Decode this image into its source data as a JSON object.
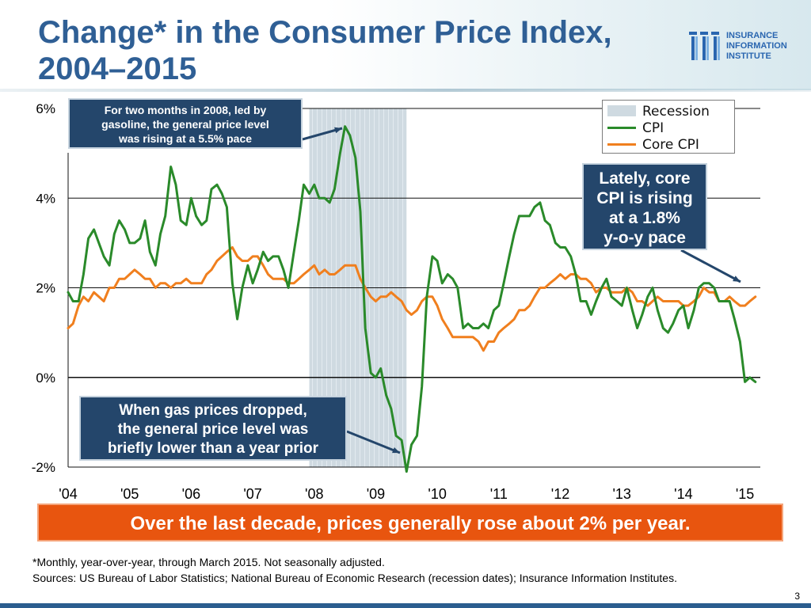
{
  "title": {
    "line1": "Change* in the Consumer Price Index,",
    "line2": "2004–2015"
  },
  "logo": {
    "line1": "INSURANCE",
    "line2": "INFORMATION",
    "line3": "INSTITUTE",
    "color": "#2a66b0"
  },
  "callouts": {
    "spike_2008": {
      "line1": "For two months in 2008, led by",
      "line2": "gasoline, the general price level",
      "line3": "was rising at a 5.5% pace"
    },
    "gas_drop": {
      "line1": "When gas prices dropped,",
      "line2": "the general price level was",
      "line3": "briefly lower than a year prior"
    },
    "core_cpi": {
      "line1": "Lately, core",
      "line2": "CPI is rising",
      "line3": "at a 1.8%",
      "line4": "y-o-y pace"
    }
  },
  "legend": {
    "recession": "Recession",
    "cpi": "CPI",
    "core_cpi": "Core CPI"
  },
  "banner": "Over the last decade, prices generally rose about 2% per year.",
  "footnote": {
    "line1": "*Monthly, year-over-year, through March 2015. Not seasonally adjusted.",
    "line2": "Sources: US Bureau of Labor Statistics; National Bureau of Economic Research (recession dates); Insurance Information Institutes."
  },
  "page_number": "3",
  "colors": {
    "title": "#2f5f95",
    "cpi": "#2a8a2a",
    "core_cpi": "#f07f1e",
    "recession": "#cfdae1",
    "callout": "#24466b",
    "banner": "#e8550f"
  },
  "chart_data": {
    "type": "line",
    "title": "Change* in the Consumer Price Index, 2004–2015",
    "xlabel": "",
    "ylabel": "",
    "ylim": [
      -2,
      6
    ],
    "xlim": [
      2004.0,
      2015.25
    ],
    "yticks": [
      -2,
      0,
      2,
      4,
      6
    ],
    "ytick_labels": [
      "-2%",
      "0%",
      "2%",
      "4%",
      "6%"
    ],
    "xticks": [
      2004,
      2005,
      2006,
      2007,
      2008,
      2009,
      2010,
      2011,
      2012,
      2013,
      2014,
      2015
    ],
    "xtick_labels": [
      "'04",
      "'05",
      "'06",
      "'07",
      "'08",
      "'09",
      "'10",
      "'11",
      "'12",
      "'13",
      "'14",
      "'15"
    ],
    "grid": true,
    "recession": {
      "name": "Recession",
      "start": 2007.92,
      "end": 2009.5
    },
    "series": [
      {
        "name": "CPI",
        "color": "#2a8a2a",
        "x": [
          2004.0,
          2004.08,
          2004.17,
          2004.25,
          2004.33,
          2004.42,
          2004.5,
          2004.58,
          2004.67,
          2004.75,
          2004.83,
          2004.92,
          2005.0,
          2005.08,
          2005.17,
          2005.25,
          2005.33,
          2005.42,
          2005.5,
          2005.58,
          2005.67,
          2005.75,
          2005.83,
          2005.92,
          2006.0,
          2006.08,
          2006.17,
          2006.25,
          2006.33,
          2006.42,
          2006.5,
          2006.58,
          2006.67,
          2006.75,
          2006.83,
          2006.92,
          2007.0,
          2007.08,
          2007.17,
          2007.25,
          2007.33,
          2007.42,
          2007.5,
          2007.58,
          2007.67,
          2007.75,
          2007.83,
          2007.92,
          2008.0,
          2008.08,
          2008.17,
          2008.25,
          2008.33,
          2008.42,
          2008.5,
          2008.58,
          2008.67,
          2008.75,
          2008.83,
          2008.92,
          2009.0,
          2009.08,
          2009.17,
          2009.25,
          2009.33,
          2009.42,
          2009.5,
          2009.58,
          2009.67,
          2009.75,
          2009.83,
          2009.92,
          2010.0,
          2010.08,
          2010.17,
          2010.25,
          2010.33,
          2010.42,
          2010.5,
          2010.58,
          2010.67,
          2010.75,
          2010.83,
          2010.92,
          2011.0,
          2011.08,
          2011.17,
          2011.25,
          2011.33,
          2011.42,
          2011.5,
          2011.58,
          2011.67,
          2011.75,
          2011.83,
          2011.92,
          2012.0,
          2012.08,
          2012.17,
          2012.25,
          2012.33,
          2012.42,
          2012.5,
          2012.58,
          2012.67,
          2012.75,
          2012.83,
          2012.92,
          2013.0,
          2013.08,
          2013.17,
          2013.25,
          2013.33,
          2013.42,
          2013.5,
          2013.58,
          2013.67,
          2013.75,
          2013.83,
          2013.92,
          2014.0,
          2014.08,
          2014.17,
          2014.25,
          2014.33,
          2014.42,
          2014.5,
          2014.58,
          2014.67,
          2014.75,
          2014.83,
          2014.92,
          2015.0,
          2015.08,
          2015.17
        ],
        "values": [
          1.9,
          1.7,
          1.7,
          2.3,
          3.1,
          3.3,
          3.0,
          2.7,
          2.5,
          3.2,
          3.5,
          3.3,
          3.0,
          3.0,
          3.1,
          3.5,
          2.8,
          2.5,
          3.2,
          3.6,
          4.7,
          4.3,
          3.5,
          3.4,
          4.0,
          3.6,
          3.4,
          3.5,
          4.2,
          4.3,
          4.1,
          3.8,
          2.1,
          1.3,
          2.0,
          2.5,
          2.1,
          2.4,
          2.8,
          2.6,
          2.7,
          2.7,
          2.4,
          2.0,
          2.8,
          3.5,
          4.3,
          4.1,
          4.3,
          4.0,
          4.0,
          3.9,
          4.2,
          5.0,
          5.6,
          5.4,
          4.9,
          3.7,
          1.1,
          0.1,
          0.0,
          0.2,
          -0.4,
          -0.7,
          -1.3,
          -1.4,
          -2.1,
          -1.5,
          -1.3,
          -0.2,
          1.8,
          2.7,
          2.6,
          2.1,
          2.3,
          2.2,
          2.0,
          1.1,
          1.2,
          1.1,
          1.1,
          1.2,
          1.1,
          1.5,
          1.6,
          2.1,
          2.7,
          3.2,
          3.6,
          3.6,
          3.6,
          3.8,
          3.9,
          3.5,
          3.4,
          3.0,
          2.9,
          2.9,
          2.7,
          2.3,
          1.7,
          1.7,
          1.4,
          1.7,
          2.0,
          2.2,
          1.8,
          1.7,
          1.6,
          2.0,
          1.5,
          1.1,
          1.4,
          1.8,
          2.0,
          1.5,
          1.1,
          1.0,
          1.2,
          1.5,
          1.6,
          1.1,
          1.5,
          2.0,
          2.1,
          2.1,
          2.0,
          1.7,
          1.7,
          1.7,
          1.3,
          0.8,
          -0.1,
          0.0,
          -0.1
        ]
      },
      {
        "name": "Core CPI",
        "color": "#f07f1e",
        "x": [
          2004.0,
          2004.08,
          2004.17,
          2004.25,
          2004.33,
          2004.42,
          2004.5,
          2004.58,
          2004.67,
          2004.75,
          2004.83,
          2004.92,
          2005.0,
          2005.08,
          2005.17,
          2005.25,
          2005.33,
          2005.42,
          2005.5,
          2005.58,
          2005.67,
          2005.75,
          2005.83,
          2005.92,
          2006.0,
          2006.08,
          2006.17,
          2006.25,
          2006.33,
          2006.42,
          2006.5,
          2006.58,
          2006.67,
          2006.75,
          2006.83,
          2006.92,
          2007.0,
          2007.08,
          2007.17,
          2007.25,
          2007.33,
          2007.42,
          2007.5,
          2007.58,
          2007.67,
          2007.75,
          2007.83,
          2007.92,
          2008.0,
          2008.08,
          2008.17,
          2008.25,
          2008.33,
          2008.42,
          2008.5,
          2008.58,
          2008.67,
          2008.75,
          2008.83,
          2008.92,
          2009.0,
          2009.08,
          2009.17,
          2009.25,
          2009.33,
          2009.42,
          2009.5,
          2009.58,
          2009.67,
          2009.75,
          2009.83,
          2009.92,
          2010.0,
          2010.08,
          2010.17,
          2010.25,
          2010.33,
          2010.42,
          2010.5,
          2010.58,
          2010.67,
          2010.75,
          2010.83,
          2010.92,
          2011.0,
          2011.08,
          2011.17,
          2011.25,
          2011.33,
          2011.42,
          2011.5,
          2011.58,
          2011.67,
          2011.75,
          2011.83,
          2011.92,
          2012.0,
          2012.08,
          2012.17,
          2012.25,
          2012.33,
          2012.42,
          2012.5,
          2012.58,
          2012.67,
          2012.75,
          2012.83,
          2012.92,
          2013.0,
          2013.08,
          2013.17,
          2013.25,
          2013.33,
          2013.42,
          2013.5,
          2013.58,
          2013.67,
          2013.75,
          2013.83,
          2013.92,
          2014.0,
          2014.08,
          2014.17,
          2014.25,
          2014.33,
          2014.42,
          2014.5,
          2014.58,
          2014.67,
          2014.75,
          2014.83,
          2014.92,
          2015.0,
          2015.08,
          2015.17
        ],
        "values": [
          1.1,
          1.2,
          1.6,
          1.8,
          1.7,
          1.9,
          1.8,
          1.7,
          2.0,
          2.0,
          2.2,
          2.2,
          2.3,
          2.4,
          2.3,
          2.2,
          2.2,
          2.0,
          2.1,
          2.1,
          2.0,
          2.1,
          2.1,
          2.2,
          2.1,
          2.1,
          2.1,
          2.3,
          2.4,
          2.6,
          2.7,
          2.8,
          2.9,
          2.7,
          2.6,
          2.6,
          2.7,
          2.7,
          2.5,
          2.3,
          2.2,
          2.2,
          2.2,
          2.1,
          2.1,
          2.2,
          2.3,
          2.4,
          2.5,
          2.3,
          2.4,
          2.3,
          2.3,
          2.4,
          2.5,
          2.5,
          2.5,
          2.2,
          2.0,
          1.8,
          1.7,
          1.8,
          1.8,
          1.9,
          1.8,
          1.7,
          1.5,
          1.4,
          1.5,
          1.7,
          1.8,
          1.8,
          1.6,
          1.3,
          1.1,
          0.9,
          0.9,
          0.9,
          0.9,
          0.9,
          0.8,
          0.6,
          0.8,
          0.8,
          1.0,
          1.1,
          1.2,
          1.3,
          1.5,
          1.5,
          1.6,
          1.8,
          2.0,
          2.0,
          2.1,
          2.2,
          2.3,
          2.2,
          2.3,
          2.3,
          2.2,
          2.2,
          2.1,
          1.9,
          2.0,
          2.0,
          1.9,
          1.9,
          1.9,
          2.0,
          1.9,
          1.7,
          1.7,
          1.6,
          1.7,
          1.8,
          1.7,
          1.7,
          1.7,
          1.7,
          1.6,
          1.6,
          1.7,
          1.8,
          2.0,
          1.9,
          1.9,
          1.7,
          1.7,
          1.8,
          1.7,
          1.6,
          1.6,
          1.7,
          1.8
        ]
      }
    ]
  }
}
